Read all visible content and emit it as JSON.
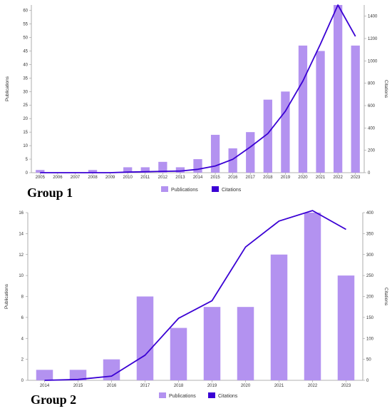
{
  "chart_data": [
    {
      "type": "bar",
      "group_label": "Group 1",
      "categories": [
        "2005",
        "2006",
        "2007",
        "2008",
        "2009",
        "2010",
        "2011",
        "2012",
        "2013",
        "2014",
        "2015",
        "2016",
        "2017",
        "2018",
        "2019",
        "2020",
        "2021",
        "2022",
        "2023"
      ],
      "series": [
        {
          "name": "Publications",
          "type": "bar",
          "axis": "left",
          "color": "#b392f0",
          "values": [
            1,
            0,
            0,
            1,
            0,
            2,
            2,
            4,
            2,
            5,
            14,
            9,
            15,
            27,
            30,
            47,
            45,
            62,
            47
          ]
        },
        {
          "name": "Citations",
          "type": "line",
          "axis": "right",
          "color": "#3a00d4",
          "values": [
            0,
            0,
            0,
            0,
            0,
            5,
            8,
            12,
            15,
            30,
            60,
            120,
            230,
            350,
            550,
            820,
            1150,
            1500,
            1220
          ]
        }
      ],
      "ylabel": "Publications",
      "y2label": "Citations",
      "ylim": [
        0,
        62
      ],
      "yticks": [
        0,
        5,
        10,
        15,
        20,
        25,
        30,
        35,
        40,
        45,
        50,
        55,
        60
      ],
      "y2lim": [
        0,
        1500
      ],
      "y2ticks": [
        0,
        200,
        400,
        600,
        800,
        1000,
        1200,
        1400
      ],
      "legend": [
        "Publications",
        "Citations"
      ],
      "legend_position": "bottom",
      "grid": false
    },
    {
      "type": "bar",
      "group_label": "Group 2",
      "categories": [
        "2014",
        "2015",
        "2016",
        "2017",
        "2018",
        "2019",
        "2020",
        "2021",
        "2022",
        "2023"
      ],
      "series": [
        {
          "name": "Publications",
          "type": "bar",
          "axis": "left",
          "color": "#b392f0",
          "values": [
            1,
            1,
            2,
            8,
            5,
            7,
            7,
            12,
            16,
            10
          ]
        },
        {
          "name": "Citations",
          "type": "line",
          "axis": "right",
          "color": "#3a00d4",
          "values": [
            0,
            2,
            10,
            60,
            148,
            190,
            318,
            380,
            405,
            360
          ]
        }
      ],
      "ylabel": "Publications",
      "y2label": "Citations",
      "ylim": [
        0,
        16
      ],
      "yticks": [
        0,
        2,
        4,
        6,
        8,
        10,
        12,
        14,
        16
      ],
      "y2lim": [
        0,
        400
      ],
      "y2ticks": [
        0,
        50,
        100,
        150,
        200,
        250,
        300,
        350,
        400
      ],
      "legend": [
        "Publications",
        "Citations"
      ],
      "legend_position": "bottom",
      "grid": false
    }
  ]
}
